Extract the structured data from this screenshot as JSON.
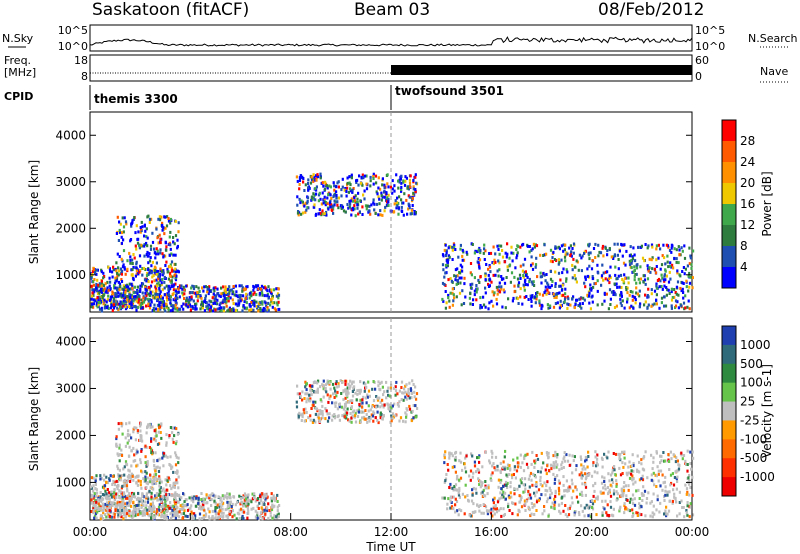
{
  "header": {
    "station": "Saskatoon (fitACF)",
    "beam": "Beam 03",
    "date": "08/Feb/2012"
  },
  "panels": {
    "nsky_label": "N.Sky",
    "nsearch_label": "N.Search",
    "nsky_ticks": [
      "10^5",
      "10^0"
    ],
    "nsearch_ticks": [
      "10^5",
      "10^0"
    ],
    "freq_label": "Freq.",
    "freq_unit": "[MHz]",
    "freq_ticks": [
      "18",
      "8"
    ],
    "nave_label": "Nave",
    "nave_ticks": [
      "60",
      "0"
    ],
    "cpid_label": "CPID",
    "cpid_segments": [
      {
        "name": "themis 3300",
        "start_ut": "00:00",
        "end_ut": "12:00"
      },
      {
        "name": "twofsound 3501",
        "start_ut": "12:00",
        "end_ut": "24:00"
      }
    ]
  },
  "chart_data": [
    {
      "type": "heatmap",
      "quantity": "Power",
      "ylabel": "Slant Range [km]",
      "y_ticks": [
        "1000",
        "2000",
        "3000",
        "4000"
      ],
      "ylim": [
        200,
        4500
      ],
      "xlim": [
        "00:00",
        "24:00"
      ],
      "colorbar_label": "Power [dB]",
      "colorbar_ticks": [
        "4",
        "8",
        "12",
        "16",
        "20",
        "24",
        "28"
      ],
      "colorbar_colors": [
        "#0000ff",
        "#1f4fb0",
        "#2e7d3f",
        "#3fa84a",
        "#f0c800",
        "#ff9000",
        "#ff5a00",
        "#ff0000"
      ],
      "echo_regions_ut_hours_km": [
        {
          "t": [
            0.0,
            3.5
          ],
          "range": [
            300,
            1200
          ]
        },
        {
          "t": [
            1.0,
            3.5
          ],
          "range": [
            1000,
            2300
          ]
        },
        {
          "t": [
            0.0,
            7.5
          ],
          "range": [
            250,
            800
          ]
        },
        {
          "t": [
            8.2,
            13.0
          ],
          "range": [
            2300,
            3200
          ]
        },
        {
          "t": [
            14.0,
            24.0
          ],
          "range": [
            300,
            1700
          ]
        }
      ]
    },
    {
      "type": "heatmap",
      "quantity": "Velocity",
      "ylabel": "Slant Range [km]",
      "y_ticks": [
        "1000",
        "2000",
        "3000",
        "4000"
      ],
      "ylim": [
        200,
        4500
      ],
      "xlabel": "Time UT",
      "x_ticks": [
        "00:00",
        "04:00",
        "08:00",
        "12:00",
        "16:00",
        "20:00",
        "00:00"
      ],
      "colorbar_label": "Velocity [m s-1]",
      "colorbar_ticks": [
        "1000",
        "500",
        "100",
        "25",
        "-25",
        "-100",
        "-500",
        "-1000"
      ],
      "colorbar_colors": [
        "#1f3fb0",
        "#2e6a7a",
        "#2e8a3f",
        "#66c44a",
        "#bfbfbf",
        "#ff9a00",
        "#ff6a00",
        "#ff3000",
        "#ee0000"
      ]
    }
  ]
}
